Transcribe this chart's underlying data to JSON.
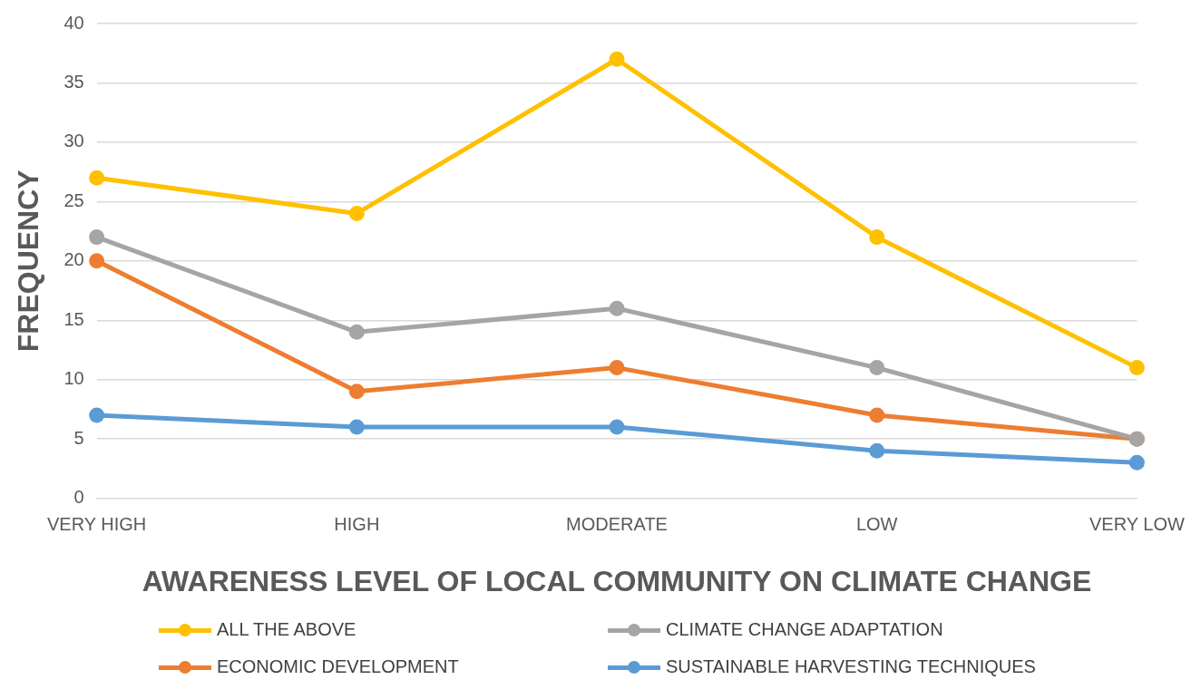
{
  "chart_data": {
    "type": "line",
    "xlabel": "AWARENESS LEVEL OF LOCAL COMMUNITY ON CLIMATE CHANGE",
    "ylabel": "FREQUENCY",
    "categories": [
      "VERY HIGH",
      "HIGH",
      "MODERATE",
      "LOW",
      "VERY LOW"
    ],
    "series": [
      {
        "name": "ALL THE ABOVE",
        "color": "#ffc000",
        "values": [
          27,
          24,
          37,
          22,
          11
        ]
      },
      {
        "name": "CLIMATE CHANGE ADAPTATION",
        "color": "#a5a5a5",
        "values": [
          22,
          14,
          16,
          11,
          5
        ]
      },
      {
        "name": "ECONOMIC DEVELOPMENT",
        "color": "#ed7d31",
        "values": [
          20,
          9,
          11,
          7,
          5
        ]
      },
      {
        "name": "SUSTAINABLE HARVESTING TECHNIQUES",
        "color": "#5b9bd5",
        "values": [
          7,
          6,
          6,
          4,
          3
        ]
      }
    ],
    "ylim": [
      0,
      40
    ],
    "yticks": [
      0,
      5,
      10,
      15,
      20,
      25,
      30,
      35,
      40
    ],
    "grid": "y",
    "legend": "bottom",
    "marker": "circle",
    "line_style": "solid"
  }
}
